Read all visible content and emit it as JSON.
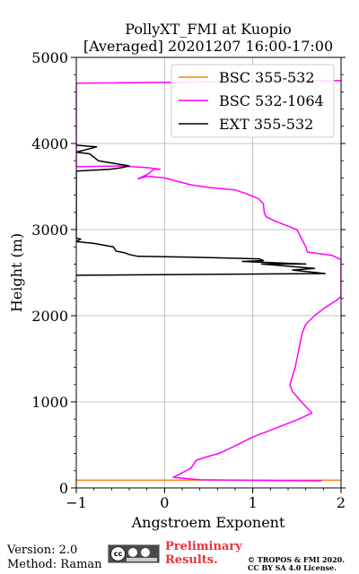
{
  "chart_data": {
    "type": "line",
    "title_line1": "PollyXT_FMI at Kuopio",
    "title_line2": "[Averaged] 20201207 16:00-17:00",
    "xlabel": "Angstroem Exponent",
    "ylabel": "Height (m)",
    "xlim": [
      -1,
      2
    ],
    "ylim": [
      0,
      5000
    ],
    "xticks": [
      {
        "v": -1,
        "label": "−1"
      },
      {
        "v": 0,
        "label": "0"
      },
      {
        "v": 1,
        "label": "1"
      },
      {
        "v": 2,
        "label": "2"
      }
    ],
    "yticks": [
      {
        "v": 0,
        "label": "0"
      },
      {
        "v": 1000,
        "label": "1000"
      },
      {
        "v": 2000,
        "label": "2000"
      },
      {
        "v": 3000,
        "label": "3000"
      },
      {
        "v": 4000,
        "label": "4000"
      },
      {
        "v": 5000,
        "label": "5000"
      }
    ],
    "grid": true,
    "legend_position": "top-right",
    "series": [
      {
        "name": "BSC 355-532",
        "color": "#ff7f0e",
        "points": [
          [
            -1.0,
            90
          ],
          [
            2.0,
            90
          ]
        ]
      },
      {
        "name": "BSC 532-1064",
        "color": "#ff00ff",
        "points": [
          [
            1.78,
            82
          ],
          [
            1.2,
            86
          ],
          [
            0.4,
            95
          ],
          [
            0.1,
            122
          ],
          [
            0.3,
            230
          ],
          [
            0.36,
            322
          ],
          [
            0.47,
            358
          ],
          [
            0.62,
            402
          ],
          [
            0.8,
            488
          ],
          [
            1.0,
            592
          ],
          [
            1.25,
            690
          ],
          [
            1.5,
            790
          ],
          [
            1.67,
            870
          ],
          [
            1.55,
            1000
          ],
          [
            1.45,
            1120
          ],
          [
            1.42,
            1200
          ],
          [
            1.48,
            1400
          ],
          [
            1.52,
            1600
          ],
          [
            1.56,
            1800
          ],
          [
            1.6,
            1900
          ],
          [
            1.7,
            2000
          ],
          [
            1.8,
            2080
          ],
          [
            1.95,
            2180
          ],
          [
            2.0,
            2220
          ],
          [
            2.0,
            2650
          ],
          [
            1.9,
            2700
          ],
          [
            1.62,
            2740
          ],
          [
            1.6,
            2800
          ],
          [
            1.5,
            3000
          ],
          [
            1.25,
            3100
          ],
          [
            1.15,
            3150
          ],
          [
            1.13,
            3200
          ],
          [
            1.12,
            3300
          ],
          [
            1.06,
            3360
          ],
          [
            0.92,
            3420
          ],
          [
            0.8,
            3460
          ],
          [
            0.5,
            3490
          ],
          [
            0.3,
            3520
          ],
          [
            0.0,
            3600
          ],
          [
            -0.2,
            3620
          ],
          [
            -0.3,
            3590
          ],
          [
            -0.18,
            3650
          ],
          [
            -0.12,
            3700
          ],
          [
            -0.05,
            3700
          ],
          [
            -0.2,
            3720
          ],
          [
            -0.5,
            3740
          ],
          [
            -1.0,
            3730
          ],
          [
            -1.0,
            4000
          ],
          [
            -1.0,
            4700
          ],
          [
            2.0,
            4730
          ]
        ]
      },
      {
        "name": "EXT 355-532",
        "color": "#000000",
        "points": [
          [
            -1.0,
            2470
          ],
          [
            1.82,
            2490
          ],
          [
            1.45,
            2530
          ],
          [
            1.7,
            2550
          ],
          [
            1.1,
            2600
          ],
          [
            1.6,
            2600
          ],
          [
            0.88,
            2630
          ],
          [
            1.12,
            2640
          ],
          [
            1.07,
            2660
          ],
          [
            0.3,
            2680
          ],
          [
            -0.3,
            2690
          ],
          [
            -0.4,
            2710
          ],
          [
            -0.45,
            2730
          ],
          [
            -0.55,
            2750
          ],
          [
            -0.58,
            2800
          ],
          [
            -0.8,
            2840
          ],
          [
            -1.0,
            2860
          ],
          [
            -0.95,
            2890
          ],
          [
            -1.0,
            2900
          ],
          [
            -1.0,
            3680
          ],
          [
            -0.62,
            3700
          ],
          [
            -0.48,
            3720
          ],
          [
            -0.4,
            3740
          ],
          [
            -0.75,
            3800
          ],
          [
            -0.85,
            3880
          ],
          [
            -1.0,
            3900
          ],
          [
            -0.77,
            3960
          ],
          [
            -0.88,
            3970
          ],
          [
            -1.0,
            3980
          ]
        ]
      }
    ]
  },
  "footer": {
    "version": "Version: 2.0",
    "method": "Method: Raman",
    "cc_badge": "CC BY SA",
    "preliminary_line1": "Preliminary",
    "preliminary_line2": "Results.",
    "copyright_line1": "© TROPOS & FMI 2020.",
    "copyright_line2": "CC BY SA 4.0 License."
  }
}
